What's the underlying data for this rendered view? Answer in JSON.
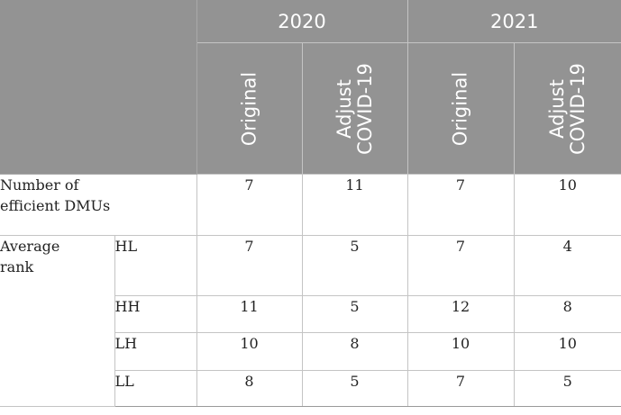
{
  "header": {
    "years": [
      "2020",
      "2021"
    ],
    "columns": [
      {
        "lines": [
          "Original"
        ]
      },
      {
        "lines": [
          "Adjust",
          "COVID-19"
        ]
      },
      {
        "lines": [
          "Original"
        ]
      },
      {
        "lines": [
          "Adjust",
          "COVID-19"
        ]
      }
    ]
  },
  "rows": {
    "efficient": {
      "label_line1": "Number of",
      "label_line2": "efficient DMUs",
      "values": [
        "7",
        "11",
        "7",
        "10"
      ]
    },
    "average_rank": {
      "label_line1": "Average",
      "label_line2": "rank"
    },
    "hl": {
      "label": "HL",
      "values": [
        "7",
        "5",
        "7",
        "4"
      ]
    },
    "hh": {
      "label": "HH",
      "values": [
        "11",
        "5",
        "12",
        "8"
      ]
    },
    "lh": {
      "label": "LH",
      "values": [
        "10",
        "8",
        "10",
        "10"
      ]
    },
    "ll": {
      "label": "LL",
      "values": [
        "8",
        "5",
        "7",
        "5"
      ]
    }
  }
}
